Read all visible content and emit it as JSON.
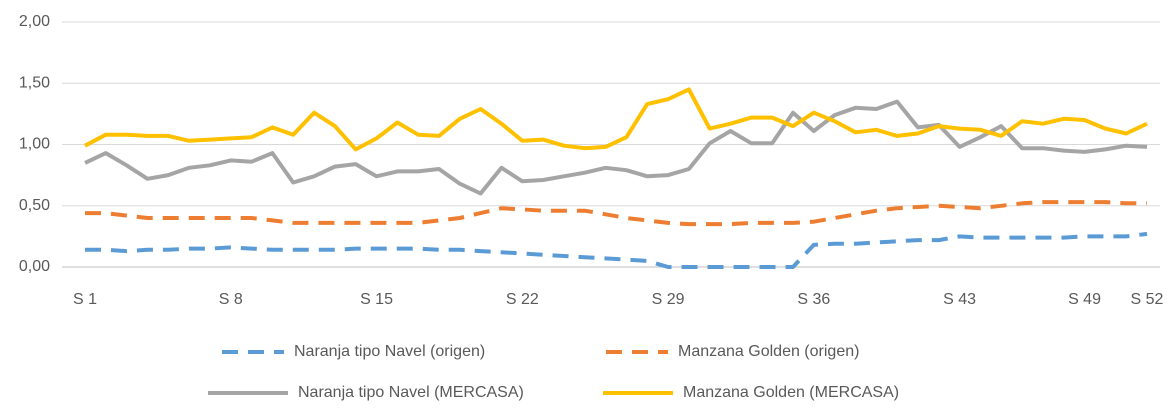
{
  "chart_data": {
    "type": "line",
    "categories": [
      "S 1",
      null,
      null,
      null,
      null,
      null,
      null,
      "S 8",
      null,
      null,
      null,
      null,
      null,
      null,
      "S 15",
      null,
      null,
      null,
      null,
      null,
      null,
      "S 22",
      null,
      null,
      null,
      null,
      null,
      null,
      "S 29",
      null,
      null,
      null,
      null,
      null,
      null,
      "S 36",
      null,
      null,
      null,
      null,
      null,
      null,
      "S 43",
      null,
      null,
      null,
      null,
      null,
      "S 49",
      null,
      null,
      "S 52"
    ],
    "series": [
      {
        "name": "Naranja tipo Navel (origen)",
        "color": "#5b9bd5",
        "dashed": true,
        "values": [
          0.14,
          0.14,
          0.13,
          0.14,
          0.14,
          0.15,
          0.15,
          0.16,
          0.15,
          0.14,
          0.14,
          0.14,
          0.14,
          0.15,
          0.15,
          0.15,
          0.15,
          0.14,
          0.14,
          0.13,
          0.12,
          0.11,
          0.1,
          0.09,
          0.08,
          0.07,
          0.06,
          0.05,
          0.0,
          0.0,
          0.0,
          0.0,
          0.0,
          0.0,
          0.0,
          0.18,
          0.19,
          0.19,
          0.2,
          0.21,
          0.22,
          0.22,
          0.25,
          0.24,
          0.24,
          0.24,
          0.24,
          0.24,
          0.25,
          0.25,
          0.25,
          0.27
        ]
      },
      {
        "name": "Manzana Golden (origen)",
        "color": "#ed7d31",
        "dashed": true,
        "values": [
          0.44,
          0.44,
          0.42,
          0.4,
          0.4,
          0.4,
          0.4,
          0.4,
          0.4,
          0.38,
          0.36,
          0.36,
          0.36,
          0.36,
          0.36,
          0.36,
          0.36,
          0.38,
          0.4,
          0.44,
          0.48,
          0.47,
          0.46,
          0.46,
          0.46,
          0.43,
          0.4,
          0.38,
          0.36,
          0.35,
          0.35,
          0.35,
          0.36,
          0.36,
          0.36,
          0.37,
          0.4,
          0.43,
          0.46,
          0.48,
          0.49,
          0.5,
          0.49,
          0.48,
          0.5,
          0.52,
          0.53,
          0.53,
          0.53,
          0.53,
          0.52,
          0.52
        ]
      },
      {
        "name": "Naranja tipo Navel (MERCASA)",
        "color": "#a5a5a5",
        "dashed": false,
        "values": [
          0.85,
          0.93,
          0.83,
          0.72,
          0.75,
          0.81,
          0.83,
          0.87,
          0.86,
          0.93,
          0.69,
          0.74,
          0.82,
          0.84,
          0.74,
          0.78,
          0.78,
          0.8,
          0.68,
          0.6,
          0.81,
          0.7,
          0.71,
          0.74,
          0.77,
          0.81,
          0.79,
          0.74,
          0.75,
          0.8,
          1.01,
          1.11,
          1.01,
          1.01,
          1.26,
          1.11,
          1.24,
          1.3,
          1.29,
          1.35,
          1.14,
          1.16,
          0.98,
          1.06,
          1.15,
          0.97,
          0.97,
          0.95,
          0.94,
          0.96,
          0.99,
          0.98
        ]
      },
      {
        "name": "Manzana Golden (MERCASA)",
        "color": "#ffc000",
        "dashed": false,
        "values": [
          0.99,
          1.08,
          1.08,
          1.07,
          1.07,
          1.03,
          1.04,
          1.05,
          1.06,
          1.14,
          1.08,
          1.26,
          1.15,
          0.96,
          1.05,
          1.18,
          1.08,
          1.07,
          1.21,
          1.29,
          1.17,
          1.03,
          1.04,
          0.99,
          0.97,
          0.98,
          1.06,
          1.33,
          1.37,
          1.45,
          1.13,
          1.17,
          1.22,
          1.22,
          1.15,
          1.26,
          1.19,
          1.1,
          1.12,
          1.07,
          1.09,
          1.15,
          1.13,
          1.12,
          1.07,
          1.19,
          1.17,
          1.21,
          1.2,
          1.13,
          1.09,
          1.17
        ]
      }
    ],
    "ylim": [
      0,
      2
    ],
    "yticks": [
      {
        "value": 0,
        "label": "0,00"
      },
      {
        "value": 0.5,
        "label": "0,50"
      },
      {
        "value": 1,
        "label": "1,00"
      },
      {
        "value": 1.5,
        "label": "1,50"
      },
      {
        "value": 2,
        "label": "2,00"
      }
    ],
    "grid": true
  }
}
